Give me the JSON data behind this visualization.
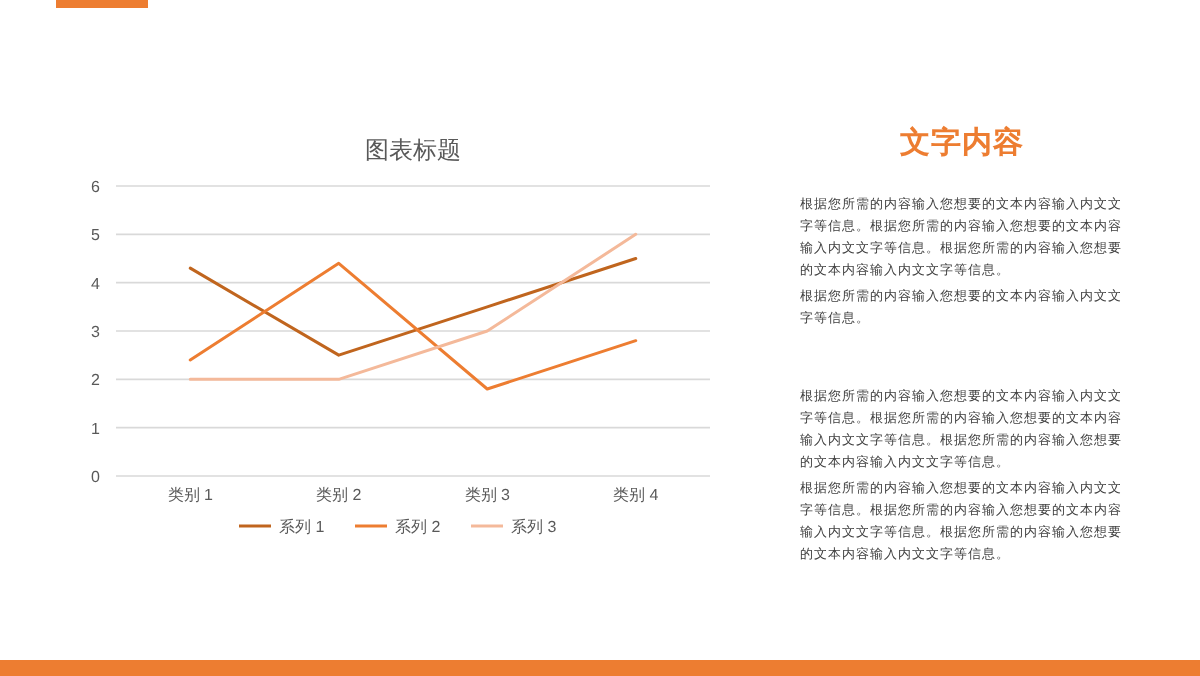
{
  "chart_data": [
    {
      "type": "line",
      "title": "图表标题",
      "categories": [
        "类别 1",
        "类别 2",
        "类别 3",
        "类别 4"
      ],
      "series": [
        {
          "name": "系列 1",
          "color": "#c0651e",
          "values": [
            4.3,
            2.5,
            3.5,
            4.5
          ]
        },
        {
          "name": "系列 2",
          "color": "#ed7d31",
          "values": [
            2.4,
            4.4,
            1.8,
            2.8
          ]
        },
        {
          "name": "系列 3",
          "color": "#f4b99a",
          "values": [
            2,
            2,
            3,
            5
          ]
        }
      ],
      "ylim": [
        0,
        6
      ],
      "yticks": [
        0,
        1,
        2,
        3,
        4,
        5,
        6
      ],
      "grid": "y",
      "legend": "bottom",
      "marker": "none",
      "line_style": "solid"
    },
    {
      "type": "other",
      "title": "文字内容",
      "annotations": [
        "根据您所需的内容输入您想要的文本内容输入内文文字等信息。根据您所需的内容输入您想要的文本内容输入内文文字等信息。根据您所需的内容输入您想要的文本内容输入内文文字等信息。",
        "根据您所需的内容输入您想要的文本内容输入内文文字等信息。",
        "根据您所需的内容输入您想要的文本内容输入内文文字等信息。根据您所需的内容输入您想要的文本内容输入内文文字等信息。根据您所需的内容输入您想要的文本内容输入内文文字等信息。",
        "根据您所需的内容输入您想要的文本内容输入内文文字等信息。根据您所需的内容输入您想要的文本内容输入内文文字等信息。根据您所需的内容输入您想要的文本内容输入内文文字等信息。"
      ]
    }
  ]
}
